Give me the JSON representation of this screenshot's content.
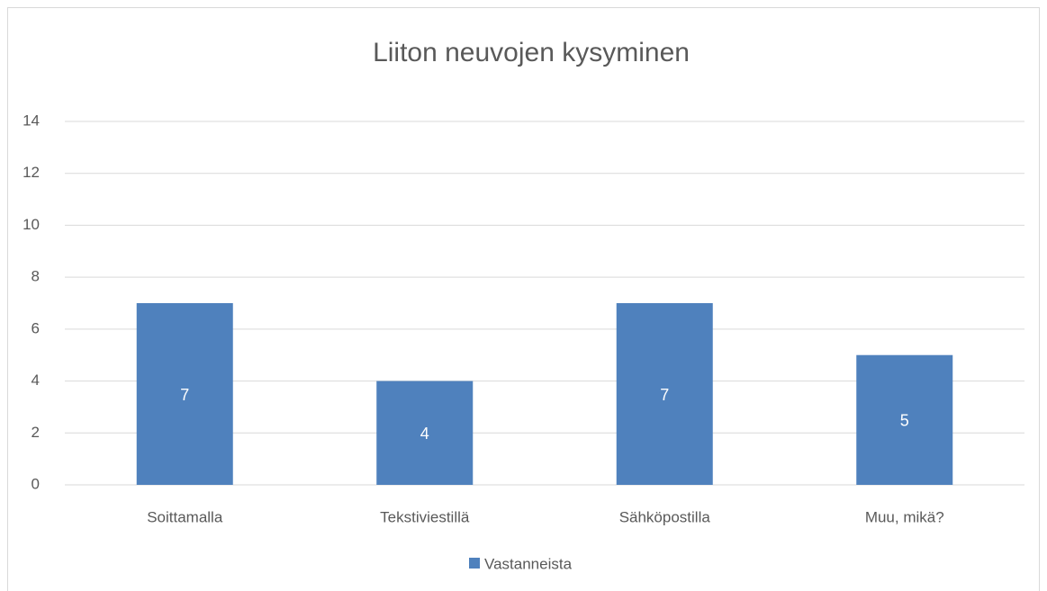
{
  "chart_data": {
    "type": "bar",
    "title": "Liiton neuvojen kysyminen",
    "categories": [
      "Soittamalla",
      "Tekstiviestillä",
      "Sähköpostilla",
      "Muu, mikä?"
    ],
    "series": [
      {
        "name": "Vastanneista",
        "color": "#4f81bd",
        "values": [
          7,
          4,
          7,
          5
        ]
      }
    ],
    "ylim": [
      0,
      14
    ],
    "yticks": [
      0,
      2,
      4,
      6,
      8,
      10,
      12,
      14
    ],
    "grid": true,
    "legend": "bottom",
    "data_labels": true
  }
}
